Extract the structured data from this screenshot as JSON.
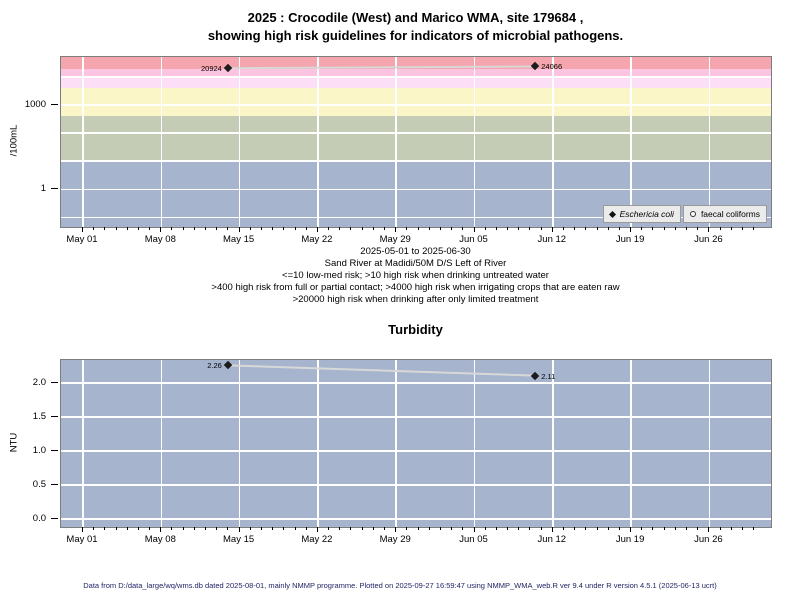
{
  "header": {
    "title_line1": "2025 : Crocodile (West) and Marico WMA, site 179684 ,",
    "title_line2": "showing high risk guidelines for indicators of microbial pathogens."
  },
  "captions": {
    "date_range": "2025-05-01 to 2025-06-30",
    "site": "Sand River at Madidi/50M D/S Left of River",
    "guideline1": "<=10 low-med risk; >10 high risk when drinking untreated water",
    "guideline2": ">400 high risk from full or partial contact; >4000 high risk when irrigating crops that are eaten raw",
    "guideline3": ">20000 high risk when drinking after only limited treatment"
  },
  "legend": [
    {
      "marker": "filled-diamond",
      "label": "Eschericia coli"
    },
    {
      "marker": "open-circle",
      "label": "faecal coliforms"
    }
  ],
  "footer": {
    "text": "Data from D:/data_large/wq/wms.db dated 2025-08-01, mainly NMMP programme. Plotted on 2025-09-27 16:59:47 using NMMP_WMA_web.R ver 9.4 under R version 4.5.1 (2025-06-13 ucrt)"
  },
  "colors": {
    "band_gt_20000": "#f5a5ae",
    "band_10000_20000": "#fbc5e1",
    "band_4000_10000": "#fcdef7",
    "band_400_4000": "#fbf6c8",
    "band_10_400": "#c4ccb6",
    "band_le_10": "#a6b4ce",
    "gridline": "#ffffff",
    "series_line": "#d8d8d8",
    "marker": "#1c1c1c",
    "legend_bg": "#ebebeb",
    "footer_text": "#232366"
  },
  "x_axis": {
    "week_labels": [
      "May 01",
      "May 08",
      "May 15",
      "May 22",
      "May 29",
      "Jun 05",
      "Jun 12",
      "Jun 19",
      "Jun 26"
    ],
    "n_days": 60
  },
  "chart_data": [
    {
      "type": "scatter",
      "title": "",
      "ylabel": "/100mL",
      "yscale": "log",
      "ylim": [
        0.045,
        52500
      ],
      "grid": true,
      "yticks": [
        {
          "v": 1000,
          "t": "1000"
        },
        {
          "v": 1,
          "t": "1"
        }
      ],
      "grid_y": [
        0.1,
        1,
        10,
        100,
        1000,
        10000
      ],
      "bands": [
        {
          "from": 20000,
          "to": 52500,
          "color": "#f5a5ae"
        },
        {
          "from": 10000,
          "to": 20000,
          "color": "#fbc5e1"
        },
        {
          "from": 4000,
          "to": 10000,
          "color": "#fcdef7"
        },
        {
          "from": 400,
          "to": 4000,
          "color": "#fbf6c8"
        },
        {
          "from": 10,
          "to": 400,
          "color": "#c4ccb6"
        },
        {
          "from": 0.045,
          "to": 10,
          "color": "#a6b4ce"
        }
      ],
      "series": [
        {
          "name": "Eschericia coli",
          "points": [
            {
              "x_frac": 0.235,
              "y": 20924,
              "label": "20924",
              "label_side": "left"
            },
            {
              "x_frac": 0.668,
              "y": 24066,
              "label": "24066",
              "label_side": "right"
            }
          ]
        }
      ]
    },
    {
      "type": "scatter",
      "title": "Turbidity",
      "ylabel": "NTU",
      "yscale": "linear",
      "ylim": [
        -0.118,
        2.34
      ],
      "grid": true,
      "yticks": [
        {
          "v": 2.0,
          "t": "2.0"
        },
        {
          "v": 1.5,
          "t": "1.5"
        },
        {
          "v": 1.0,
          "t": "1.0"
        },
        {
          "v": 0.5,
          "t": "0.5"
        },
        {
          "v": 0.0,
          "t": "0.0"
        }
      ],
      "grid_y": [
        0.0,
        0.5,
        1.0,
        1.5,
        2.0
      ],
      "bands": [
        {
          "from": -0.118,
          "to": 2.34,
          "color": "#a6b4ce"
        }
      ],
      "series": [
        {
          "name": "Turbidity",
          "points": [
            {
              "x_frac": 0.235,
              "y": 2.26,
              "label": "2.26",
              "label_side": "left"
            },
            {
              "x_frac": 0.668,
              "y": 2.11,
              "label": "2.11",
              "label_side": "right"
            }
          ]
        }
      ]
    }
  ]
}
